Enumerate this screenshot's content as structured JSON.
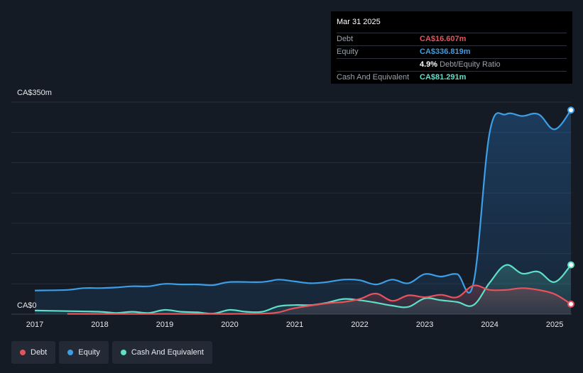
{
  "tooltip": {
    "date": "Mar 31 2025",
    "rows": [
      {
        "label": "Debt",
        "value": "CA$16.607m",
        "color": "#e8525c"
      },
      {
        "label": "Equity",
        "value": "CA$336.819m",
        "color": "#3b9ee6"
      },
      {
        "label": "",
        "value": "4.9%",
        "sub": "Debt/Equity Ratio",
        "color": "#ffffff"
      },
      {
        "label": "Cash And Equivalent",
        "value": "CA$81.291m",
        "color": "#5ee0c8"
      }
    ]
  },
  "axis": {
    "y_top_label": "CA$350m",
    "y_bottom_label": "CA$0",
    "x_labels": [
      "2017",
      "2018",
      "2019",
      "2020",
      "2021",
      "2022",
      "2023",
      "2024",
      "2025"
    ]
  },
  "legend": [
    {
      "label": "Debt",
      "color": "#e8525c"
    },
    {
      "label": "Equity",
      "color": "#3b9ee6"
    },
    {
      "label": "Cash And Equivalent",
      "color": "#5ee0c8"
    }
  ],
  "chart_data": {
    "type": "area",
    "ylim": [
      0,
      350
    ],
    "xlim": [
      2017.0,
      2025.25
    ],
    "x_ticks": [
      2017,
      2018,
      2019,
      2020,
      2021,
      2022,
      2023,
      2024,
      2025
    ],
    "series": [
      {
        "name": "Debt",
        "color": "#e8525c",
        "points": [
          [
            2017.5,
            0.5
          ],
          [
            2018.0,
            0.5
          ],
          [
            2018.5,
            0.5
          ],
          [
            2019.0,
            0.5
          ],
          [
            2019.5,
            0.5
          ],
          [
            2020.0,
            0.5
          ],
          [
            2020.5,
            1
          ],
          [
            2020.75,
            3
          ],
          [
            2021.0,
            10
          ],
          [
            2021.5,
            18
          ],
          [
            2021.75,
            20
          ],
          [
            2022.0,
            25
          ],
          [
            2022.25,
            34
          ],
          [
            2022.5,
            22
          ],
          [
            2022.75,
            31
          ],
          [
            2023.0,
            28
          ],
          [
            2023.25,
            32
          ],
          [
            2023.5,
            28
          ],
          [
            2023.75,
            47
          ],
          [
            2024.0,
            40
          ],
          [
            2024.25,
            40
          ],
          [
            2024.5,
            43
          ],
          [
            2024.75,
            40
          ],
          [
            2025.0,
            33
          ],
          [
            2025.25,
            16.607
          ]
        ]
      },
      {
        "name": "Equity",
        "color": "#3b9ee6",
        "points": [
          [
            2017.0,
            39
          ],
          [
            2017.5,
            40
          ],
          [
            2017.75,
            43
          ],
          [
            2018.0,
            43
          ],
          [
            2018.25,
            44
          ],
          [
            2018.5,
            46
          ],
          [
            2018.75,
            46
          ],
          [
            2019.0,
            50
          ],
          [
            2019.25,
            49
          ],
          [
            2019.5,
            49
          ],
          [
            2019.75,
            48
          ],
          [
            2020.0,
            53
          ],
          [
            2020.5,
            53
          ],
          [
            2020.75,
            57
          ],
          [
            2021.0,
            54
          ],
          [
            2021.25,
            51
          ],
          [
            2021.5,
            53
          ],
          [
            2021.75,
            57
          ],
          [
            2022.0,
            56
          ],
          [
            2022.25,
            49
          ],
          [
            2022.5,
            57
          ],
          [
            2022.75,
            51
          ],
          [
            2023.0,
            66
          ],
          [
            2023.25,
            62
          ],
          [
            2023.5,
            66
          ],
          [
            2023.75,
            51
          ],
          [
            2024.0,
            300
          ],
          [
            2024.25,
            330
          ],
          [
            2024.5,
            327
          ],
          [
            2024.75,
            330
          ],
          [
            2025.0,
            305
          ],
          [
            2025.25,
            336.819
          ]
        ]
      },
      {
        "name": "Cash And Equivalent",
        "color": "#5ee0c8",
        "points": [
          [
            2017.0,
            6
          ],
          [
            2017.5,
            5
          ],
          [
            2018.0,
            4
          ],
          [
            2018.25,
            2
          ],
          [
            2018.5,
            4
          ],
          [
            2018.75,
            2
          ],
          [
            2019.0,
            7
          ],
          [
            2019.25,
            4
          ],
          [
            2019.5,
            3
          ],
          [
            2019.75,
            1
          ],
          [
            2020.0,
            7
          ],
          [
            2020.25,
            4
          ],
          [
            2020.5,
            4
          ],
          [
            2020.75,
            13
          ],
          [
            2021.0,
            15
          ],
          [
            2021.25,
            15
          ],
          [
            2021.5,
            19
          ],
          [
            2021.75,
            25
          ],
          [
            2022.0,
            23
          ],
          [
            2022.25,
            19
          ],
          [
            2022.5,
            14
          ],
          [
            2022.75,
            12
          ],
          [
            2023.0,
            26
          ],
          [
            2023.25,
            23
          ],
          [
            2023.5,
            20
          ],
          [
            2023.75,
            15
          ],
          [
            2024.0,
            52
          ],
          [
            2024.25,
            81
          ],
          [
            2024.5,
            67
          ],
          [
            2024.75,
            70
          ],
          [
            2025.0,
            53
          ],
          [
            2025.25,
            81.291
          ]
        ]
      }
    ]
  }
}
